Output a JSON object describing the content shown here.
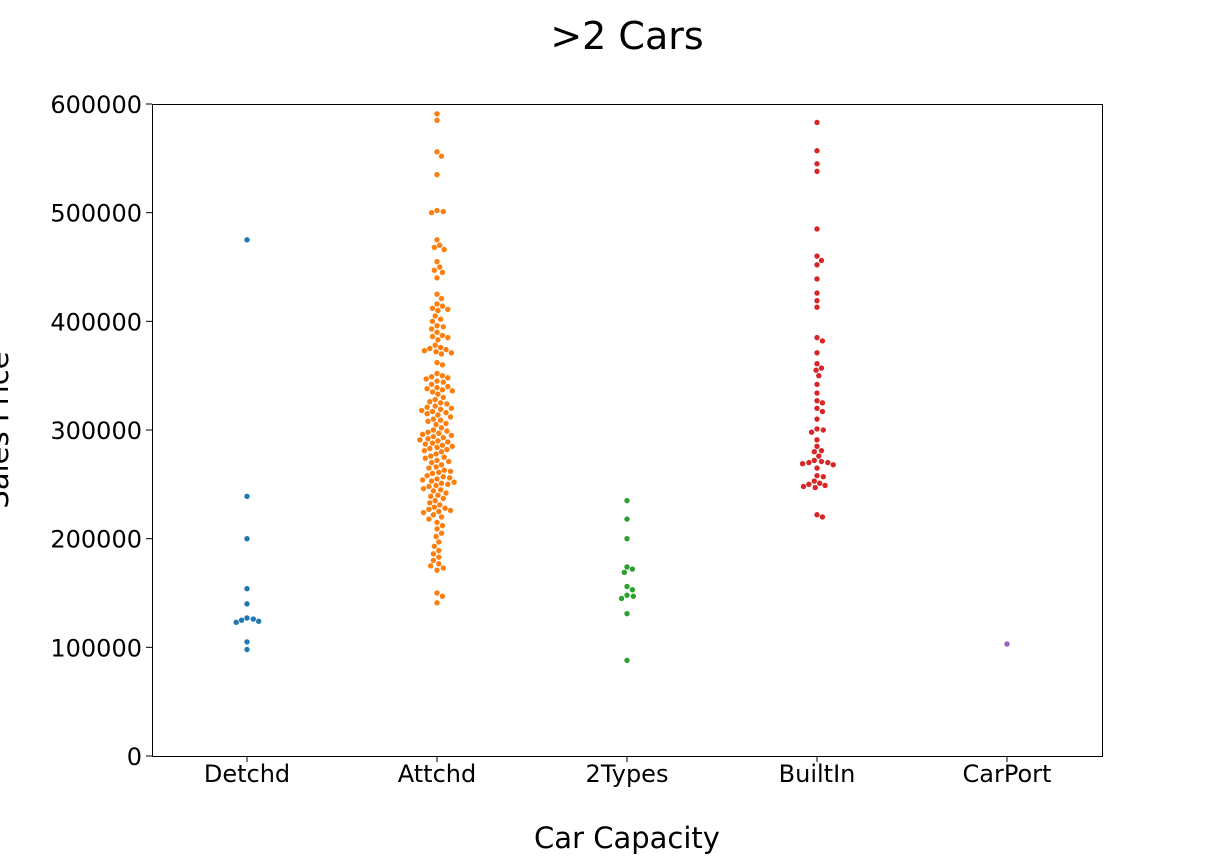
{
  "chart_data": {
    "type": "scatter",
    "subtype": "swarm",
    "title": ">2 Cars",
    "xlabel": "Car Capacity",
    "ylabel": "Sales Price",
    "ylim": [
      0,
      600000
    ],
    "yticks": [
      0,
      100000,
      200000,
      300000,
      400000,
      500000,
      600000
    ],
    "ytick_labels": [
      "0",
      "100000",
      "200000",
      "300000",
      "400000",
      "500000",
      "600000"
    ],
    "grid": false,
    "legend": "none",
    "categories": [
      "Detchd",
      "Attchd",
      "2Types",
      "BuiltIn",
      "CarPort"
    ],
    "series": [
      {
        "category": "Detchd",
        "color": "#1f77b4",
        "values": [
          475000,
          239000,
          200000,
          154000,
          140000,
          127000,
          126000,
          125000,
          124000,
          123000,
          105000,
          98000
        ]
      },
      {
        "category": "Attchd",
        "color": "#ff7f0e",
        "values": [
          591000,
          585000,
          556000,
          552000,
          535000,
          502000,
          501000,
          500000,
          475000,
          470000,
          468000,
          466000,
          455000,
          450000,
          447000,
          445000,
          440000,
          425000,
          421000,
          416000,
          414000,
          412000,
          411000,
          410000,
          405000,
          402000,
          400000,
          396000,
          395000,
          393000,
          390000,
          387000,
          386000,
          385000,
          383000,
          378000,
          376000,
          375000,
          374000,
          373000,
          372000,
          371000,
          370000,
          362000,
          360000,
          352000,
          350000,
          349000,
          348000,
          347000,
          345000,
          344000,
          342000,
          340000,
          339000,
          338000,
          337000,
          336000,
          335000,
          333000,
          330000,
          328000,
          326000,
          325000,
          324000,
          322000,
          321000,
          320000,
          319000,
          318000,
          317000,
          316000,
          315000,
          314000,
          312000,
          310000,
          309000,
          308000,
          306000,
          305000,
          302000,
          300000,
          299000,
          298000,
          297000,
          296000,
          295000,
          294000,
          293000,
          292000,
          291000,
          290000,
          289000,
          288000,
          287000,
          286000,
          285000,
          284000,
          283000,
          282000,
          281000,
          280000,
          278000,
          276000,
          275000,
          274000,
          272000,
          271000,
          270000,
          268000,
          266000,
          265000,
          263000,
          262000,
          261000,
          260000,
          258000,
          257000,
          256000,
          255000,
          254000,
          253000,
          252000,
          251000,
          250000,
          249000,
          248000,
          246000,
          245000,
          244000,
          242000,
          240000,
          239000,
          237000,
          235000,
          233000,
          231000,
          229000,
          228000,
          227000,
          226000,
          225000,
          224000,
          222000,
          220000,
          218000,
          215000,
          212000,
          209000,
          205000,
          202000,
          197000,
          193000,
          189000,
          186000,
          183000,
          180000,
          177000,
          175000,
          173000,
          171000,
          150000,
          147000,
          141000
        ]
      },
      {
        "category": "2Types",
        "color": "#2ca02c",
        "values": [
          235000,
          218000,
          200000,
          174000,
          172000,
          169000,
          156000,
          153000,
          148000,
          147000,
          145000,
          131000,
          88000
        ]
      },
      {
        "category": "BuiltIn",
        "color": "#d62728",
        "values": [
          583000,
          557000,
          545000,
          538000,
          485000,
          460000,
          456000,
          452000,
          439000,
          426000,
          419000,
          413000,
          385000,
          382000,
          371000,
          361000,
          357000,
          355000,
          350000,
          342000,
          334000,
          327000,
          325000,
          320000,
          317000,
          310000,
          301000,
          300000,
          298000,
          291000,
          285000,
          281000,
          280000,
          276000,
          272000,
          271000,
          270000,
          270000,
          269000,
          268000,
          265000,
          258000,
          257000,
          253000,
          251000,
          250000,
          249000,
          248000,
          247000,
          222000,
          220000
        ]
      },
      {
        "category": "CarPort",
        "color": "#9467bd",
        "values": [
          103000
        ]
      }
    ]
  }
}
